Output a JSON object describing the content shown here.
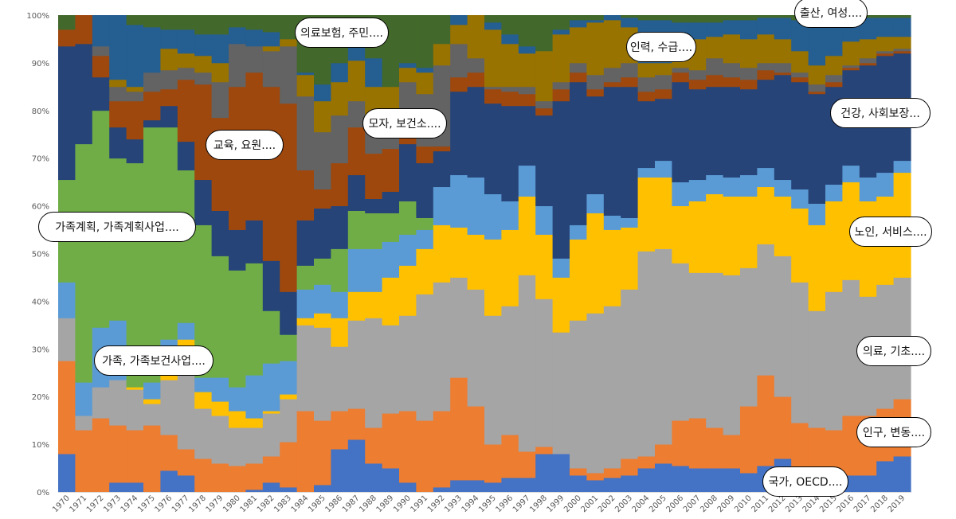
{
  "chart_data": {
    "type": "area",
    "stacked": "percent",
    "step": true,
    "title": "",
    "xlabel": "",
    "ylabel": "",
    "ylim": [
      0,
      100
    ],
    "yticks": [
      "0%",
      "10%",
      "20%",
      "30%",
      "40%",
      "50%",
      "60%",
      "70%",
      "80%",
      "90%",
      "100%"
    ],
    "grid": false,
    "legend": "none",
    "x": [
      "1970",
      "1971",
      "1972",
      "1973",
      "1974",
      "1975",
      "1976",
      "1977",
      "1978",
      "1979",
      "1980",
      "1981",
      "1982",
      "1983",
      "1984",
      "1985",
      "1986",
      "1987",
      "1988",
      "1989",
      "1990",
      "1991",
      "1992",
      "1993",
      "1994",
      "1995",
      "1996",
      "1997",
      "1998",
      "1999",
      "2000",
      "2001",
      "2002",
      "2003",
      "2004",
      "2005",
      "2006",
      "2007",
      "2008",
      "2009",
      "2010",
      "2011",
      "2012",
      "2013",
      "2014",
      "2015",
      "2016",
      "2017",
      "2018",
      "2019"
    ],
    "series": [
      {
        "name": "국가, OECD....",
        "color": "#4472C4",
        "values": [
          8,
          0,
          0,
          2,
          2,
          0,
          4.5,
          3.5,
          0,
          0,
          0,
          0.5,
          2,
          1,
          0,
          1.5,
          9,
          11,
          6,
          5,
          2,
          0,
          1,
          2.5,
          2.5,
          2,
          3,
          3,
          8,
          8,
          3.5,
          2.5,
          3,
          3.5,
          5,
          6,
          5.5,
          5,
          5,
          5,
          4,
          5.5,
          7,
          4,
          3,
          3.5,
          3.5,
          3.5,
          6.5,
          7.5
        ]
      },
      {
        "name": "인구, 변동....",
        "color": "#ED7D31",
        "values": [
          19.5,
          13,
          15.5,
          12,
          11,
          14,
          7.5,
          5.5,
          7,
          6,
          5.5,
          5.5,
          5.5,
          9.5,
          17,
          13.5,
          8,
          6.5,
          7.5,
          11.5,
          15,
          15,
          16,
          21.5,
          15.5,
          8,
          9,
          5.5,
          1.5,
          0,
          1.5,
          1.5,
          2,
          3.5,
          2.5,
          4,
          9.5,
          10.5,
          8.5,
          7,
          14,
          19,
          13,
          10.5,
          10.5,
          9.5,
          12.5,
          12.5,
          11,
          12
        ]
      },
      {
        "name": "의료, 기초....",
        "color": "#A5A5A5",
        "values": [
          9,
          3,
          6.5,
          9.5,
          8.5,
          4.5,
          11.5,
          21,
          10.5,
          10,
          8,
          7.5,
          9,
          9,
          18,
          19.5,
          13.5,
          18.5,
          23,
          18.5,
          20,
          26.5,
          27,
          21,
          24.5,
          27,
          27,
          37,
          31,
          25.5,
          31,
          33.5,
          34,
          35.5,
          43,
          41,
          33,
          30.5,
          32.5,
          33.5,
          29,
          27.5,
          29.5,
          29.5,
          24.5,
          29,
          28.5,
          25,
          26,
          25.5
        ]
      },
      {
        "name": "노인, 서비스....",
        "color": "#FFC000",
        "values": [
          0,
          0,
          0,
          0,
          0.5,
          1,
          1,
          2,
          3.5,
          3,
          3.5,
          2,
          0.5,
          1,
          1.5,
          3,
          6,
          6,
          5.5,
          10,
          10.5,
          9.5,
          12,
          10.5,
          11.5,
          16,
          16,
          16.5,
          13.5,
          11.5,
          17,
          21,
          16,
          13,
          15.5,
          15,
          12,
          15,
          16.5,
          16.5,
          15,
          12,
          12.5,
          15.5,
          18,
          19,
          20.5,
          20,
          18.5,
          22
        ]
      },
      {
        "name": "가족, 가족보건사업....",
        "color": "#5B9BD5",
        "values": [
          7.5,
          7,
          12.5,
          12.5,
          0,
          3.5,
          7.5,
          3.5,
          3,
          5,
          5,
          9,
          10,
          7,
          6,
          6,
          5.5,
          9,
          9,
          7.5,
          6.5,
          4,
          8,
          11,
          12,
          9.5,
          6,
          6.5,
          6,
          4,
          3,
          4,
          3,
          2,
          2,
          3.5,
          5,
          4.5,
          4,
          4,
          4.5,
          4,
          3.5,
          4,
          4.5,
          3.5,
          3.5,
          5,
          5,
          2.5
        ]
      },
      {
        "name": "가족계획, 가족계획사업....",
        "color": "#70AD47",
        "values": [
          21.5,
          50,
          45.5,
          34,
          47,
          53.5,
          44.5,
          32,
          32,
          25.5,
          24.5,
          23.5,
          11,
          5.5,
          5,
          5.5,
          9,
          8,
          7.5,
          6,
          7,
          2.5,
          0,
          0,
          0,
          0,
          0,
          0,
          0,
          0,
          0,
          0,
          0,
          0,
          0,
          0,
          0,
          0,
          0,
          0,
          0,
          0,
          0,
          0,
          0,
          0,
          0,
          0,
          0,
          0
        ]
      },
      {
        "name": "건강, 사회보장...",
        "color": "#264478",
        "values": [
          28,
          21,
          7,
          6.5,
          5,
          1.5,
          4.5,
          6,
          9.5,
          9.5,
          8.5,
          9,
          10.5,
          9,
          9.5,
          10.5,
          9,
          7.5,
          3,
          4.5,
          12,
          11.5,
          7.5,
          17.5,
          19,
          19,
          20,
          12.5,
          19,
          33,
          30,
          20.5,
          27,
          27.5,
          14,
          13,
          21,
          19,
          18.5,
          19,
          18,
          18.5,
          22,
          22.5,
          23,
          20.5,
          20,
          23.5,
          24.5,
          22.5
        ]
      },
      {
        "name": "교육, 요원....",
        "color": "#9E480E",
        "values": [
          3.5,
          6,
          4.5,
          5.5,
          8,
          6,
          3.5,
          13,
          20,
          19.5,
          30,
          31,
          36.5,
          39.5,
          10.5,
          4,
          9,
          10,
          9.5,
          9,
          2,
          3.5,
          1,
          3,
          3,
          3,
          3,
          2.5,
          1.5,
          2.5,
          2,
          1.5,
          1,
          2,
          2,
          2,
          2,
          2,
          2.5,
          2,
          2,
          2,
          0.5,
          1,
          0.5,
          1,
          0.5,
          0.5,
          0.5,
          0.5
        ]
      },
      {
        "name": "모자, 보건소....",
        "color": "#636363",
        "values": [
          0,
          0,
          2,
          3,
          2,
          4,
          4,
          2.5,
          2.5,
          7.5,
          9,
          5.5,
          7.5,
          12,
          15.5,
          12,
          10,
          5.5,
          7.5,
          5.5,
          11,
          11,
          17,
          7,
          3,
          0.5,
          1,
          1.5,
          1.5,
          1.5,
          2,
          3,
          3,
          3,
          3,
          3,
          1,
          2,
          3.5,
          3,
          2.5,
          1.5,
          2,
          1,
          1.5,
          1.5,
          0.5,
          1,
          0.5,
          0.5
        ]
      },
      {
        "name": "인력, 수급....",
        "color": "#997300",
        "values": [
          0,
          0,
          0,
          1.5,
          1,
          0,
          4.5,
          3,
          3.5,
          4,
          0,
          0,
          1,
          1.5,
          4.5,
          6.5,
          7,
          8.5,
          6.5,
          7.5,
          3,
          4.5,
          4.5,
          4,
          9,
          12,
          9,
          7,
          10.5,
          10,
          7.5,
          11,
          10,
          7.5,
          3,
          2.5,
          4,
          6.5,
          4.5,
          6,
          6,
          6,
          5,
          4.5,
          4,
          4,
          5,
          4,
          3,
          2.5
        ]
      },
      {
        "name": "출산, 여성....",
        "color": "#255E91",
        "values": [
          0,
          0,
          6.5,
          13.5,
          13,
          9.5,
          4,
          5,
          4.5,
          6,
          3.5,
          3.5,
          3,
          0,
          0.5,
          3.5,
          4,
          4,
          6,
          0,
          1,
          1,
          0,
          2,
          0,
          1.5,
          2,
          1.5,
          0,
          1,
          1.5,
          0.5,
          1,
          2,
          9,
          9,
          5.5,
          3.5,
          3,
          3,
          4,
          3.5,
          4.5,
          6.5,
          9.5,
          8,
          5.5,
          4.5,
          4,
          4
        ]
      },
      {
        "name": "의료보험, 주민....",
        "color": "#43682B",
        "values": [
          3,
          0,
          0,
          0,
          2,
          2.5,
          3,
          3,
          4,
          4,
          2.5,
          3,
          3.5,
          5,
          12,
          14.5,
          10,
          5.5,
          9,
          15,
          10,
          11,
          6,
          0,
          0,
          1.5,
          4,
          6.5,
          7.5,
          3,
          1,
          1,
          0,
          0.5,
          1,
          1,
          1.5,
          1.5,
          1.5,
          1,
          1,
          0.5,
          0.5,
          1,
          1,
          0.5,
          0,
          0.5,
          0.5,
          0.5
        ]
      }
    ]
  },
  "callouts": {
    "c0": "의료보험, 주민....",
    "c1": "출산, 여성....",
    "c2": "인력, 수급....",
    "c3": "건강, 사회보장...",
    "c4": "모자, 보건소....",
    "c5": "교육, 요원....",
    "c6": "가족계획, 가족계획사업....",
    "c7": "노인, 서비스....",
    "c8": "의료, 기초....",
    "c9": "가족, 가족보건사업....",
    "c10": "인구, 변동....",
    "c11": "국가, OECD...."
  }
}
